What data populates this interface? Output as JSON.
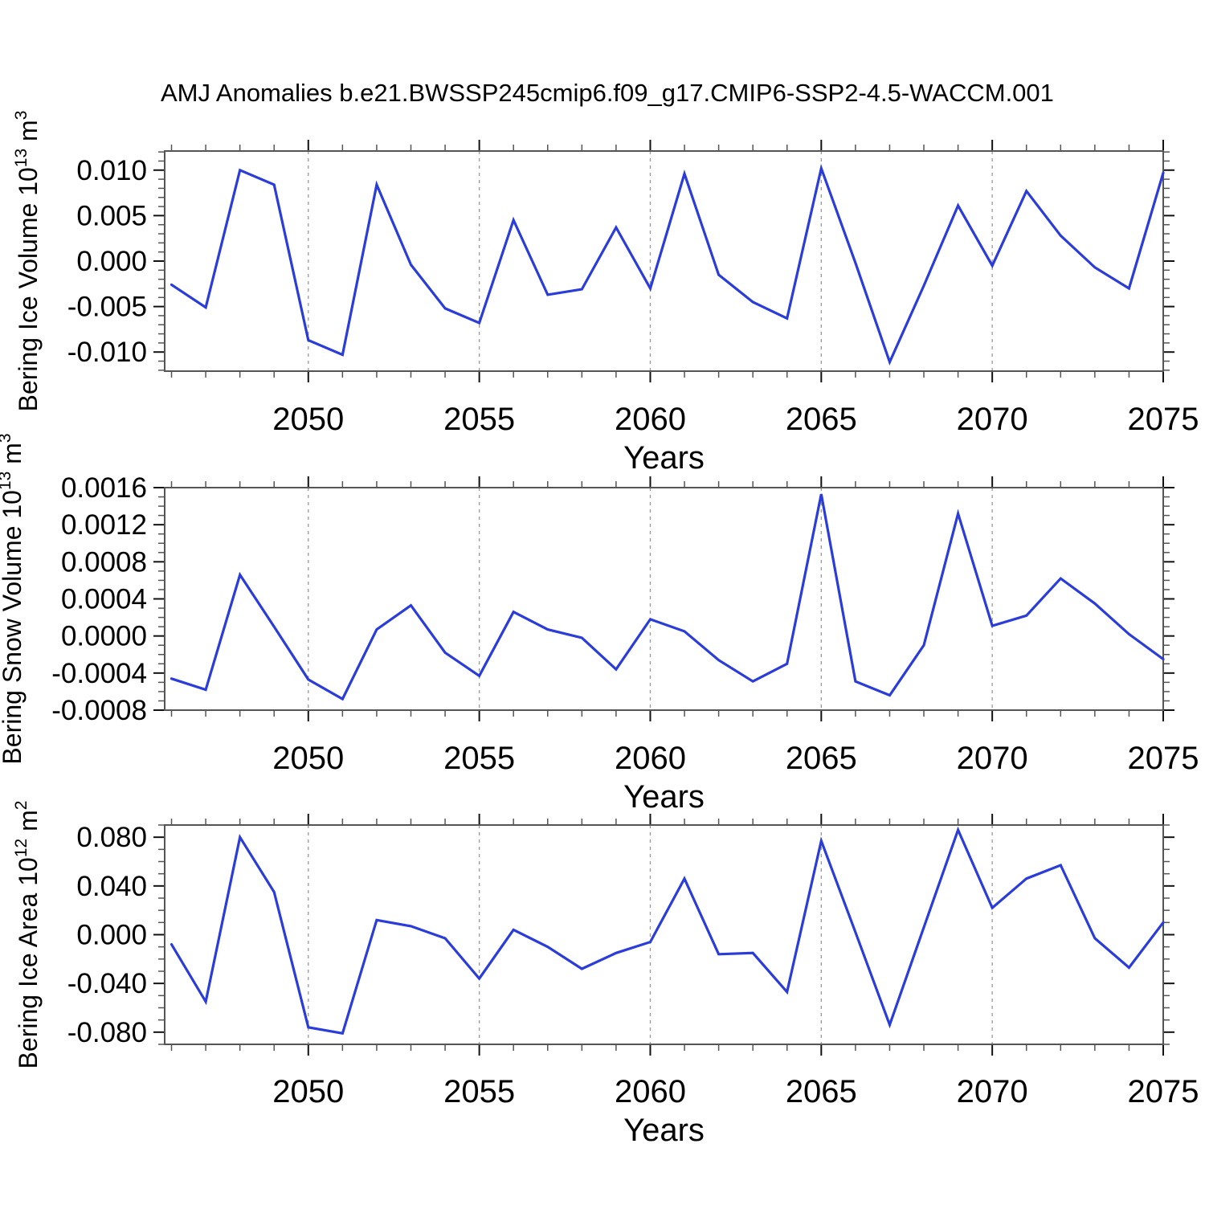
{
  "title": "AMJ Anomalies b.e21.BWSSP245cmip6.f09_g17.CMIP6-SSP2-4.5-WACCM.001",
  "colors": {
    "line": "#2A3CD9",
    "grid": "#999999",
    "axis_border": "#555555",
    "tick_major": "#111111",
    "tick_minor": "#555555",
    "text": "#000000"
  },
  "chart_data": [
    {
      "type": "line",
      "name": "bering-ice-volume",
      "ylabel": {
        "pre": "Bering Ice Volume 10",
        "sup1": "13",
        "mid": " m",
        "sup2": "3"
      },
      "xlabel": "Years",
      "x": [
        2046,
        2047,
        2048,
        2049,
        2050,
        2051,
        2052,
        2053,
        2054,
        2055,
        2056,
        2057,
        2058,
        2059,
        2060,
        2061,
        2062,
        2063,
        2064,
        2065,
        2066,
        2067,
        2068,
        2069,
        2070,
        2071,
        2072,
        2073,
        2074,
        2075
      ],
      "values": [
        -0.0026,
        -0.0051,
        0.01,
        0.0084,
        -0.0087,
        -0.0103,
        0.0084,
        -0.0004,
        -0.0052,
        -0.0068,
        0.0045,
        -0.0037,
        -0.0031,
        0.0037,
        -0.003,
        0.0096,
        -0.0015,
        -0.0045,
        -0.0063,
        0.0102,
        -0.0002,
        -0.0111,
        -0.0027,
        0.0061,
        -0.0005,
        0.0077,
        0.0028,
        -0.0007,
        -0.003,
        0.0097
      ],
      "xlim": [
        2045.8,
        2075
      ],
      "ylim": [
        -0.0121,
        0.0121
      ],
      "xticks": [
        2050,
        2055,
        2060,
        2065,
        2070,
        2075
      ],
      "xtick_labels": [
        "2050",
        "2055",
        "2060",
        "2065",
        "2070",
        "2075"
      ],
      "xminor_step": 1,
      "grid_x": [
        2050,
        2055,
        2060,
        2065,
        2070
      ],
      "yticks": [
        0.01,
        0.005,
        0.0,
        -0.005,
        -0.01
      ],
      "ytick_labels": [
        "0.010",
        "0.005",
        "0.000",
        "-0.005",
        "-0.010"
      ],
      "yminor_step": 0.001,
      "grid": "x-dashed",
      "legend": "none"
    },
    {
      "type": "line",
      "name": "bering-snow-volume",
      "ylabel": {
        "pre": "Bering Snow Volume 10",
        "sup1": "13",
        "mid": " m",
        "sup2": "3"
      },
      "xlabel": "Years",
      "x": [
        2046,
        2047,
        2048,
        2049,
        2050,
        2051,
        2052,
        2053,
        2054,
        2055,
        2056,
        2057,
        2058,
        2059,
        2060,
        2061,
        2062,
        2063,
        2064,
        2065,
        2066,
        2067,
        2068,
        2069,
        2070,
        2071,
        2072,
        2073,
        2074,
        2075
      ],
      "values": [
        -0.00046,
        -0.00058,
        0.00066,
        0.0001,
        -0.00047,
        -0.00068,
        7e-05,
        0.00033,
        -0.00018,
        -0.00043,
        0.00026,
        7e-05,
        -2e-05,
        -0.00036,
        0.00018,
        5e-05,
        -0.00026,
        -0.00049,
        -0.0003,
        0.00153,
        -0.00049,
        -0.00064,
        -0.0001,
        0.00132,
        0.00011,
        0.00022,
        0.00062,
        0.00035,
        2e-05,
        -0.00025
      ],
      "xlim": [
        2045.8,
        2075
      ],
      "ylim": [
        -0.0008,
        0.0016
      ],
      "xticks": [
        2050,
        2055,
        2060,
        2065,
        2070,
        2075
      ],
      "xtick_labels": [
        "2050",
        "2055",
        "2060",
        "2065",
        "2070",
        "2075"
      ],
      "xminor_step": 1,
      "grid_x": [
        2050,
        2055,
        2060,
        2065,
        2070
      ],
      "yticks": [
        0.0016,
        0.0012,
        0.0008,
        0.0004,
        0.0,
        -0.0004,
        -0.0008
      ],
      "ytick_labels": [
        "0.0016",
        "0.0012",
        "0.0008",
        "0.0004",
        "0.0000",
        "-0.0004",
        "-0.0008"
      ],
      "yminor_step": 0.0001,
      "grid": "x-dashed",
      "legend": "none"
    },
    {
      "type": "line",
      "name": "bering-ice-area",
      "ylabel": {
        "pre": "Bering Ice Area 10",
        "sup1": "12",
        "mid": " m",
        "sup2": "2"
      },
      "xlabel": "Years",
      "x": [
        2046,
        2047,
        2048,
        2049,
        2050,
        2051,
        2052,
        2053,
        2054,
        2055,
        2056,
        2057,
        2058,
        2059,
        2060,
        2061,
        2062,
        2063,
        2064,
        2065,
        2066,
        2067,
        2068,
        2069,
        2070,
        2071,
        2072,
        2073,
        2074,
        2075
      ],
      "values": [
        -0.008,
        -0.055,
        0.08,
        0.035,
        -0.076,
        -0.081,
        0.012,
        0.007,
        -0.003,
        -0.036,
        0.004,
        -0.01,
        -0.028,
        -0.015,
        -0.006,
        0.046,
        -0.016,
        -0.015,
        -0.047,
        0.077,
        0.002,
        -0.074,
        0.006,
        0.086,
        0.022,
        0.046,
        0.057,
        -0.003,
        -0.027,
        0.01
      ],
      "xlim": [
        2045.8,
        2075
      ],
      "ylim": [
        -0.09,
        0.09
      ],
      "xticks": [
        2050,
        2055,
        2060,
        2065,
        2070,
        2075
      ],
      "xtick_labels": [
        "2050",
        "2055",
        "2060",
        "2065",
        "2070",
        "2075"
      ],
      "xminor_step": 1,
      "grid_x": [
        2050,
        2055,
        2060,
        2065,
        2070
      ],
      "yticks": [
        0.08,
        0.04,
        0.0,
        -0.04,
        -0.08
      ],
      "ytick_labels": [
        "0.080",
        "0.040",
        "0.000",
        "-0.040",
        "-0.080"
      ],
      "yminor_step": 0.01,
      "grid": "x-dashed",
      "legend": "none"
    }
  ]
}
